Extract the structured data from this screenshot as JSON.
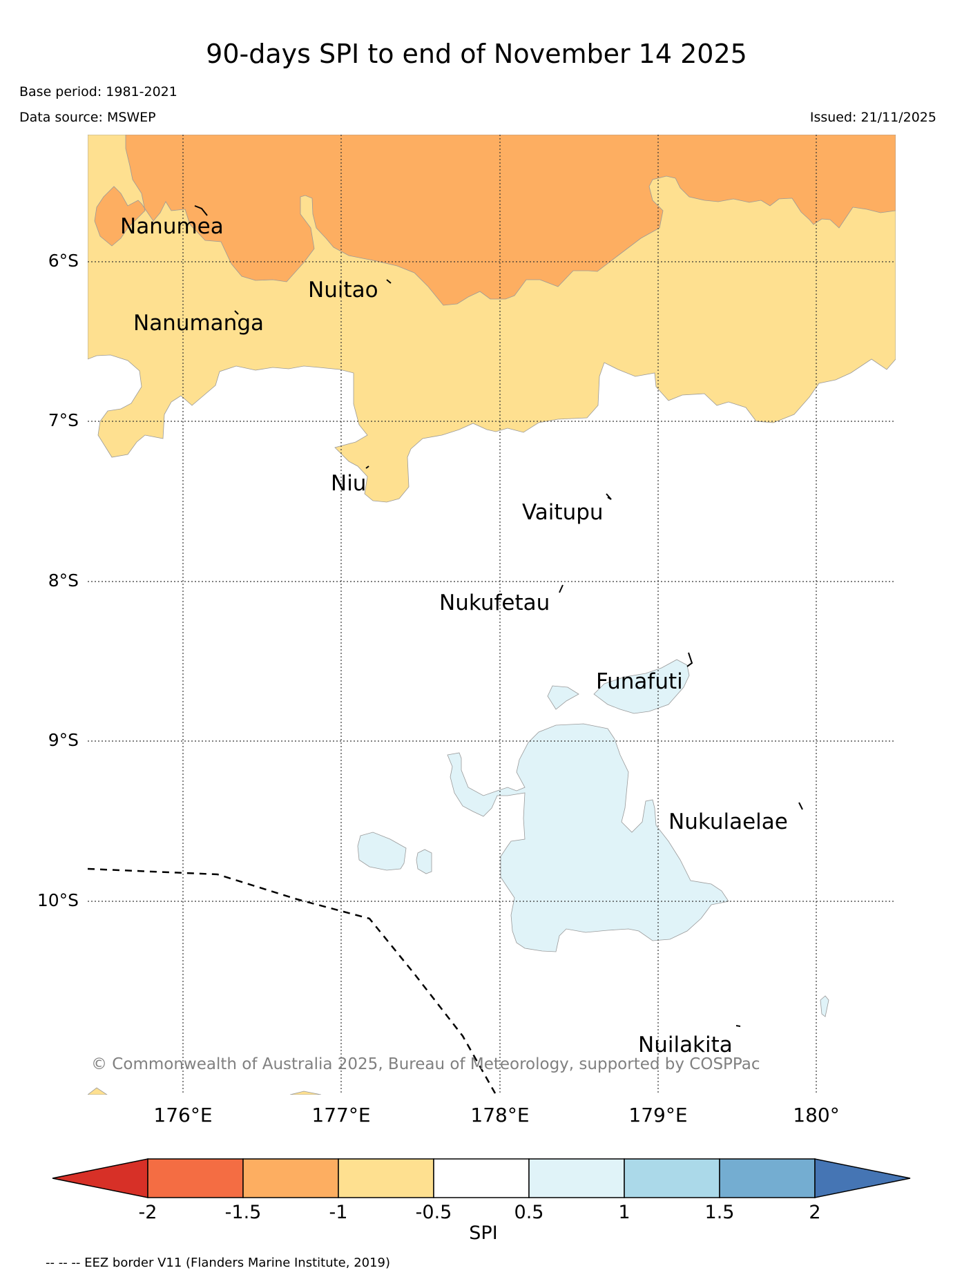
{
  "title": "90-days SPI to end of November 14 2025",
  "base_period": "Base period: 1981-2021",
  "data_source": "Data source: MSWEP",
  "issued": "Issued: 21/11/2025",
  "latitude_labels": [
    "6°S",
    "7°S",
    "8°S",
    "9°S",
    "10°S"
  ],
  "longitude_labels": [
    "176°E",
    "177°E",
    "178°E",
    "179°E",
    "180°"
  ],
  "places": [
    "Nanumea",
    "Nuitao",
    "Nanumanga",
    "Niu",
    "Vaitupu",
    "Nukufetau",
    "Funafuti",
    "Nukulaelae",
    "Nuilakita"
  ],
  "copyright": "© Commonwealth of Australia 2025, Bureau of Meteorology, supported by COSPPac",
  "colorbar": {
    "label": "SPI",
    "ticks": [
      "-2",
      "-1.5",
      "-1",
      "-0.5",
      "0.5",
      "1",
      "1.5",
      "2"
    ],
    "colors": {
      "below_-2": "#d73027",
      "-2_-1.5": "#f46d43",
      "-1.5_-1": "#fdae61",
      "-1_-0.5": "#fee090",
      "-0.5_0.5": "#ffffff",
      "0.5_1": "#e0f3f8",
      "1_1.5": "#abd9e9",
      "1.5_2": "#74add1",
      "above_2": "#4575b4"
    }
  },
  "footnote": "-- -- -- EEZ border V11 (Flanders Marine Institute, 2019)"
}
